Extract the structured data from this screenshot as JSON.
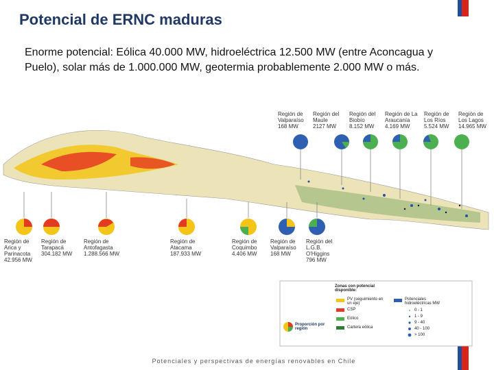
{
  "header": {
    "title": "Potencial de ERNC maduras"
  },
  "body": {
    "text": "Enorme potencial:  Eólica 40.000 MW, hidroeléctrica 12.500 MW (entre Aconcagua y Puelo), solar más de 1.000.000 MW, geotermia probablemente 2.000 MW o más."
  },
  "map": {
    "top_regions": [
      {
        "name": "Región de Valparaíso",
        "value": "168 MW"
      },
      {
        "name": "Región del Maule",
        "value": "2127 MW"
      },
      {
        "name": "Región del Biobío",
        "value": "8.152 MW"
      },
      {
        "name": "Región de La Araucanía",
        "value": "4.169 MW"
      },
      {
        "name": "Región de Los Ríos",
        "value": "5.524 MW"
      },
      {
        "name": "Región de Los Lagos",
        "value": "14.965 MW"
      }
    ],
    "bottom_regions": [
      {
        "name": "Región de Arica y Parinacota",
        "value": "42.956 MW"
      },
      {
        "name": "Región de Tarapacá",
        "value": "304.182 MW"
      },
      {
        "name": "Región de Antofagasta",
        "value": "1.288.566 MW"
      },
      {
        "name": "Región de Atacama",
        "value": "187.933 MW"
      },
      {
        "name": "Región de Coquimbo",
        "value": "4.406 MW"
      },
      {
        "name": "Región de Valparaíso",
        "value": "168 MW"
      },
      {
        "name": "Región del L.G.B. O'Higgins",
        "value": "796 MW"
      }
    ],
    "legend": {
      "title": "Zonas con potencial disponible:",
      "items": [
        "PV (seguimiento en un eje)",
        "CSP",
        "Eólico",
        "Cartera eólica"
      ],
      "pie_label": "Proporción por región",
      "hydro_title": "Potenciales hidroeléctricas MW",
      "hydro_classes": [
        "0 - 1",
        "1 - 9",
        "9 - 40",
        "40 - 100",
        "> 100"
      ]
    }
  },
  "footer": {
    "text": "Potenciales y perspectivas de energías renovables en Chile"
  }
}
